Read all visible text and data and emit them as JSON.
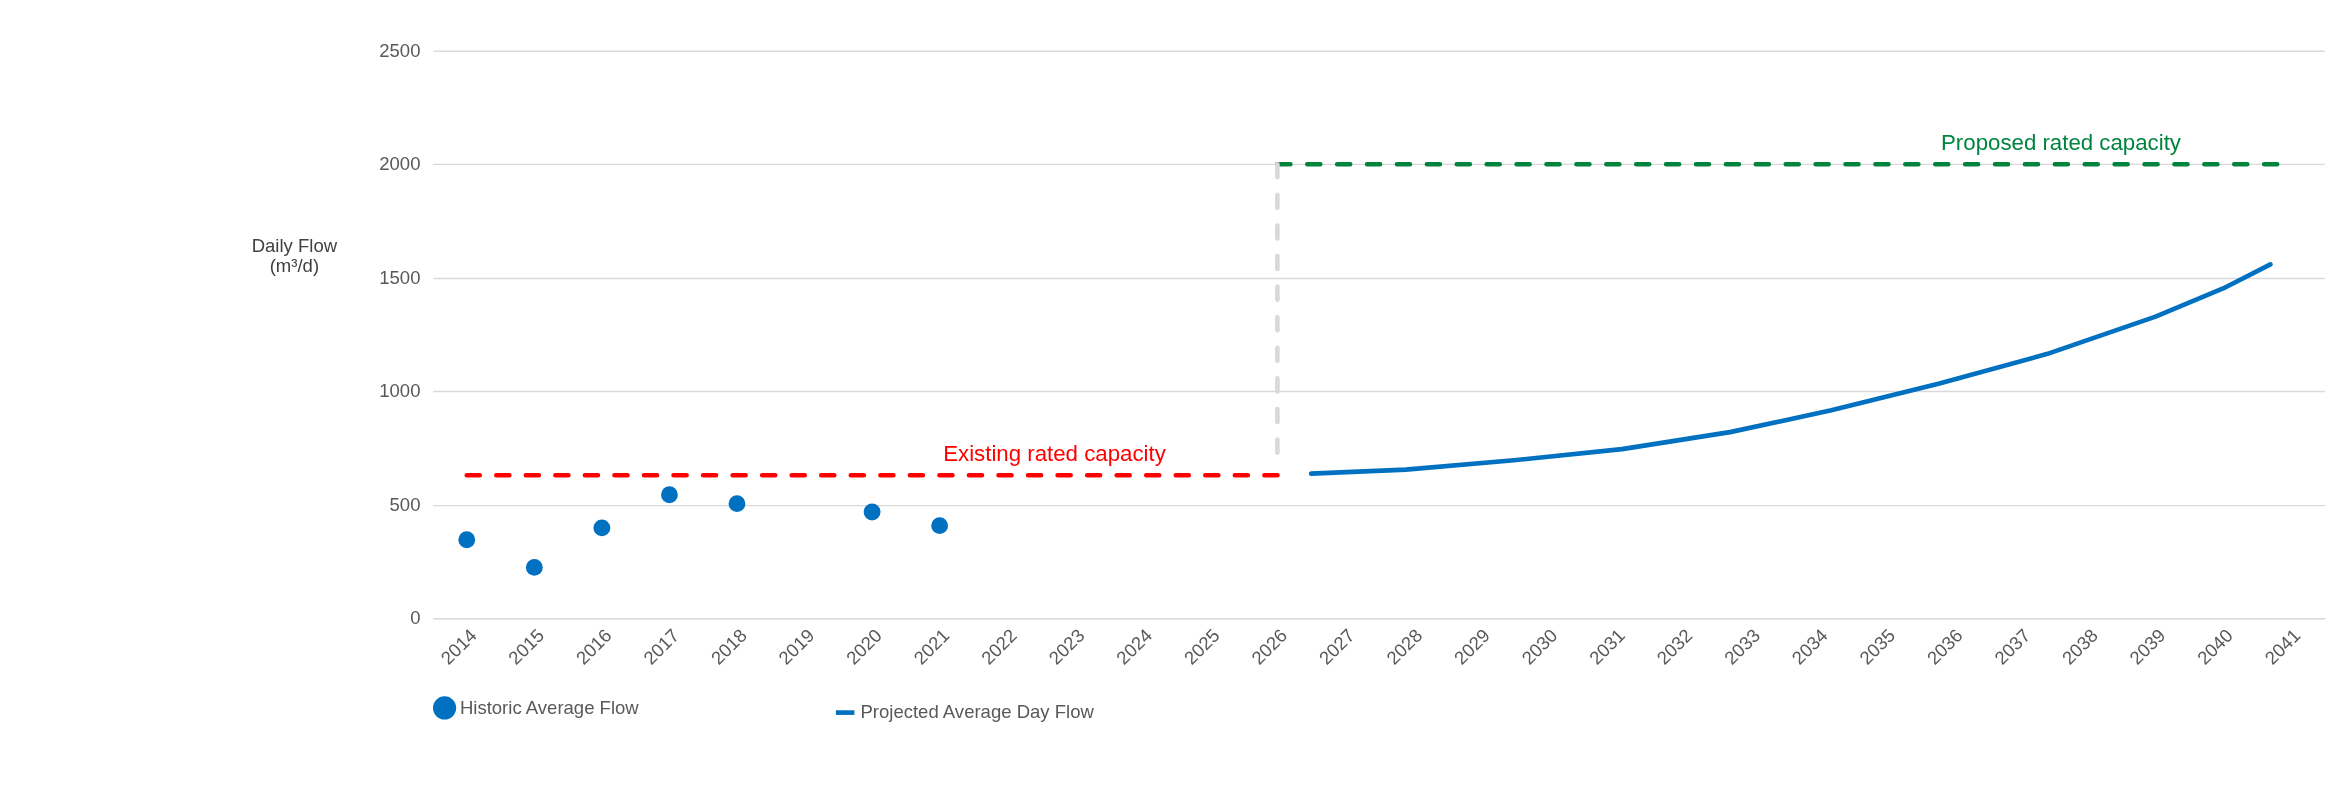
{
  "chart_data": {
    "type": "line",
    "ylabel": "Daily Flow (m³/d)",
    "xlim": [
      2013.5,
      2041.5
    ],
    "xticks": [
      2014,
      2015,
      2016,
      2017,
      2018,
      2019,
      2020,
      2021,
      2022,
      2023,
      2024,
      2025,
      2026,
      2027,
      2028,
      2029,
      2030,
      2031,
      2032,
      2033,
      2034,
      2035,
      2036,
      2037,
      2038,
      2039,
      2040,
      2041
    ],
    "ylim": [
      0,
      2500
    ],
    "yticks": [
      0,
      500,
      1000,
      1500,
      2000,
      2500
    ],
    "grid": "y",
    "legend": "bottom",
    "series": [
      {
        "name": "Historic Average Flow",
        "type": "scatter",
        "marker": "circle",
        "color": "#0070c0",
        "x": [
          2014,
          2015,
          2016,
          2017,
          2018,
          2020,
          2021
        ],
        "values": [
          346,
          224,
          398,
          544,
          505,
          468,
          408
        ]
      },
      {
        "name": "Projected Average Day Flow",
        "line_style": "solid",
        "color": "#0070c0",
        "x": [
          2026.5,
          2027.9,
          2029.5,
          2031.1,
          2032.7,
          2034.2,
          2035.8,
          2037.4,
          2039.0,
          2040.0,
          2040.7
        ],
        "values": [
          637,
          655,
          696,
          745,
          820,
          916,
          1034,
          1165,
          1329,
          1453,
          1559
        ]
      },
      {
        "line_style": "dashed",
        "color": "#ff0000",
        "x": [
          2014,
          2026
        ],
        "values": [
          630,
          630
        ]
      },
      {
        "line_style": "dashed",
        "color": "#00843d",
        "x": [
          2026,
          2040.8
        ],
        "values": [
          2000,
          2000
        ]
      },
      {
        "line_style": "dashed",
        "color": "#d9d9d9",
        "x": [
          2026,
          2026
        ],
        "values": [
          730,
          2000
        ]
      }
    ],
    "annotations": [
      {
        "text": "Existing rated capacity",
        "x": 2022.7,
        "y": 630
      },
      {
        "text": "Proposed rated capacity",
        "x": 2037.6,
        "y": 2000
      }
    ]
  }
}
